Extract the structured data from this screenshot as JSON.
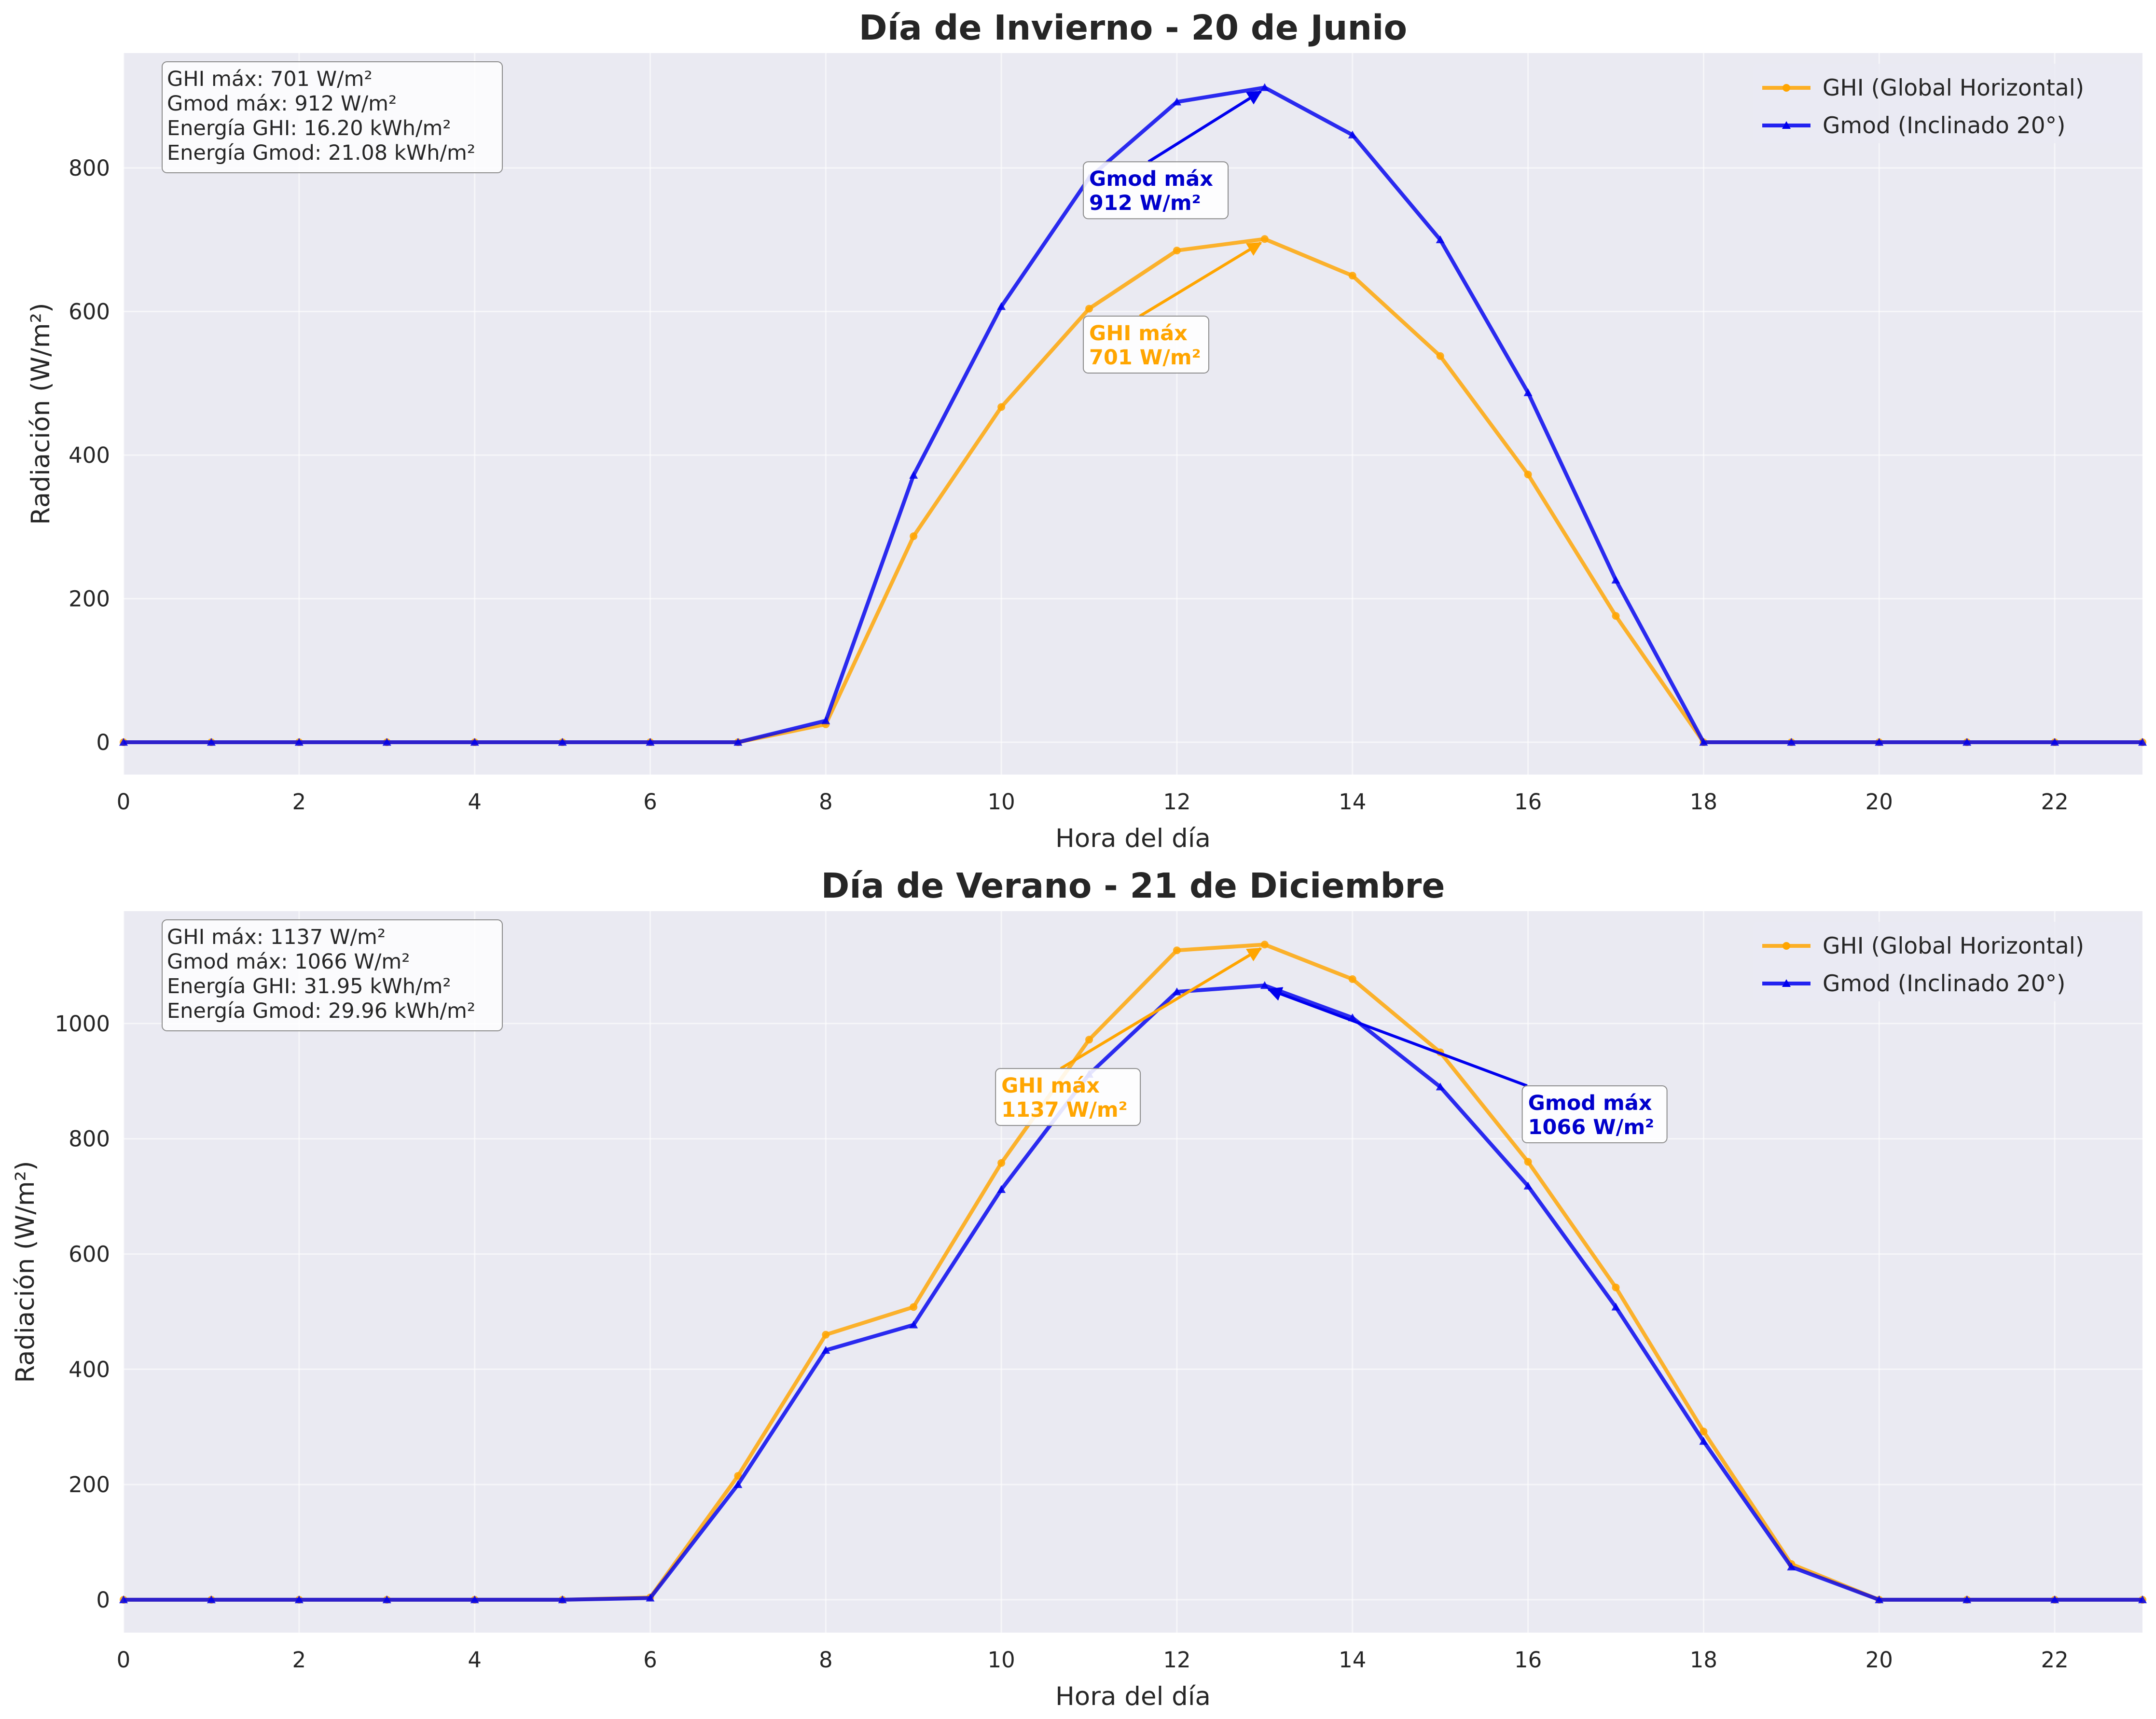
{
  "chart_data": [
    {
      "type": "line",
      "title": "Día de Invierno - 20 de Junio",
      "xlabel": "Hora del día",
      "ylabel": "Radiación (W/m²)",
      "xlim": [
        0,
        23
      ],
      "ylim": [
        -45,
        960
      ],
      "xticks": [
        0,
        2,
        4,
        6,
        8,
        10,
        12,
        14,
        16,
        18,
        20,
        22
      ],
      "yticks": [
        0,
        200,
        400,
        600,
        800
      ],
      "grid": true,
      "legend_position": "top-right",
      "x": [
        0,
        1,
        2,
        3,
        4,
        5,
        6,
        7,
        8,
        9,
        10,
        11,
        12,
        13,
        14,
        15,
        16,
        17,
        18,
        19,
        20,
        21,
        22,
        23
      ],
      "series": [
        {
          "name": "GHI (Global Horizontal)",
          "color": "#ffa500",
          "marker": "circle",
          "values": [
            0,
            0,
            0,
            0,
            0,
            0,
            0,
            0,
            25,
            287,
            467,
            604,
            685,
            701,
            650,
            538,
            373,
            176,
            0,
            0,
            0,
            0,
            0,
            0
          ]
        },
        {
          "name": "Gmod (Inclinado 20°)",
          "color": "#0000ee",
          "marker": "triangle",
          "values": [
            0,
            0,
            0,
            0,
            0,
            0,
            0,
            0,
            30,
            372,
            607,
            786,
            892,
            912,
            846,
            700,
            487,
            226,
            0,
            0,
            0,
            0,
            0,
            0
          ]
        }
      ],
      "stats_box": [
        "GHI máx: 701 W/m²",
        "Gmod máx: 912 W/m²",
        "Energía GHI: 16.20 kWh/m²",
        "Energía Gmod: 21.08 kWh/m²"
      ],
      "annotations": [
        {
          "series": 0,
          "lines": [
            "GHI máx",
            "701 W/m²"
          ],
          "point": [
            13,
            701
          ],
          "text_at": [
            11,
            560
          ],
          "color": "#ffa500"
        },
        {
          "series": 1,
          "lines": [
            "Gmod máx",
            "912 W/m²"
          ],
          "point": [
            13,
            912
          ],
          "text_at": [
            11,
            775
          ],
          "color": "#0000cc"
        }
      ]
    },
    {
      "type": "line",
      "title": "Día de Verano - 21 de Diciembre",
      "xlabel": "Hora del día",
      "ylabel": "Radiación (W/m²)",
      "xlim": [
        0,
        23
      ],
      "ylim": [
        -57,
        1195
      ],
      "xticks": [
        0,
        2,
        4,
        6,
        8,
        10,
        12,
        14,
        16,
        18,
        20,
        22
      ],
      "yticks": [
        0,
        200,
        400,
        600,
        800,
        1000
      ],
      "grid": true,
      "legend_position": "top-right",
      "x": [
        0,
        1,
        2,
        3,
        4,
        5,
        6,
        7,
        8,
        9,
        10,
        11,
        12,
        13,
        14,
        15,
        16,
        17,
        18,
        19,
        20,
        21,
        22,
        23
      ],
      "series": [
        {
          "name": "GHI (Global Horizontal)",
          "color": "#ffa500",
          "marker": "circle",
          "values": [
            0,
            0,
            0,
            0,
            0,
            0,
            4,
            215,
            460,
            508,
            758,
            972,
            1127,
            1137,
            1077,
            950,
            760,
            542,
            292,
            62,
            0,
            0,
            0,
            0
          ]
        },
        {
          "name": "Gmod (Inclinado 20°)",
          "color": "#0000ee",
          "marker": "triangle",
          "values": [
            0,
            0,
            0,
            0,
            0,
            0,
            3,
            200,
            433,
            477,
            712,
            912,
            1055,
            1066,
            1010,
            890,
            718,
            508,
            275,
            57,
            0,
            0,
            0,
            0
          ]
        }
      ],
      "stats_box": [
        "GHI máx: 1137 W/m²",
        "Gmod máx: 1066 W/m²",
        "Energía GHI: 31.95 kWh/m²",
        "Energía Gmod: 29.96 kWh/m²"
      ],
      "annotations": [
        {
          "series": 0,
          "lines": [
            "GHI máx",
            "1137 W/m²"
          ],
          "point": [
            13,
            1137
          ],
          "text_at": [
            10,
            880
          ],
          "color": "#ffa500"
        },
        {
          "series": 1,
          "lines": [
            "Gmod máx",
            "1066 W/m²"
          ],
          "point": [
            13,
            1066
          ],
          "text_at": [
            16,
            850
          ],
          "color": "#0000cc"
        }
      ]
    }
  ]
}
